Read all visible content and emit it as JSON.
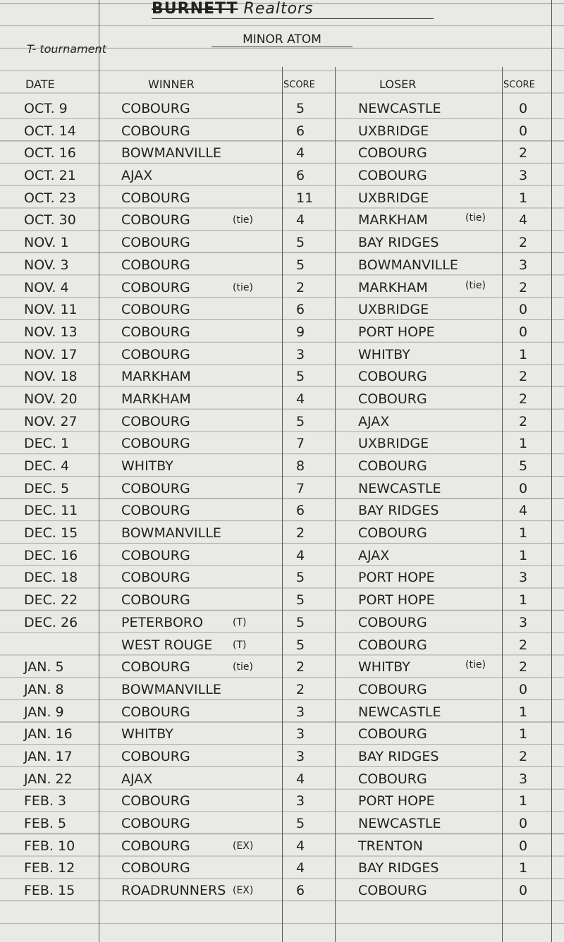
{
  "header": {
    "title_struck": "BURNETT",
    "title": "Realtors",
    "subtitle": "MINOR ATOM",
    "legend_note": "T- tournament"
  },
  "columns": {
    "date": "DATE",
    "winner": "WINNER",
    "winner_score": "SCORE",
    "loser": "LOSER",
    "loser_score": "SCORE"
  },
  "rows": [
    {
      "date": "OCT. 9",
      "winner": "COBOURG",
      "wmark": "",
      "ws": "5",
      "loser": "NEWCASTLE",
      "lmark": "",
      "ls": "0"
    },
    {
      "date": "OCT. 14",
      "winner": "COBOURG",
      "wmark": "",
      "ws": "6",
      "loser": "UXBRIDGE",
      "lmark": "",
      "ls": "0"
    },
    {
      "date": "OCT. 16",
      "winner": "BOWMANVILLE",
      "wmark": "",
      "ws": "4",
      "loser": "COBOURG",
      "lmark": "",
      "ls": "2"
    },
    {
      "date": "OCT. 21",
      "winner": "AJAX",
      "wmark": "",
      "ws": "6",
      "loser": "COBOURG",
      "lmark": "",
      "ls": "3"
    },
    {
      "date": "OCT. 23",
      "winner": "COBOURG",
      "wmark": "",
      "ws": "11",
      "loser": "UXBRIDGE",
      "lmark": "",
      "ls": "1"
    },
    {
      "date": "OCT. 30",
      "winner": "COBOURG",
      "wmark": "(tie)",
      "ws": "4",
      "loser": "MARKHAM",
      "lmark": "(tie)",
      "ls": "4"
    },
    {
      "date": "NOV. 1",
      "winner": "COBOURG",
      "wmark": "",
      "ws": "5",
      "loser": "BAY RIDGES",
      "lmark": "",
      "ls": "2"
    },
    {
      "date": "NOV. 3",
      "winner": "COBOURG",
      "wmark": "",
      "ws": "5",
      "loser": "BOWMANVILLE",
      "lmark": "",
      "ls": "3"
    },
    {
      "date": "NOV. 4",
      "winner": "COBOURG",
      "wmark": "(tie)",
      "ws": "2",
      "loser": "MARKHAM",
      "lmark": "(tie)",
      "ls": "2"
    },
    {
      "date": "NOV. 11",
      "winner": "COBOURG",
      "wmark": "",
      "ws": "6",
      "loser": "UXBRIDGE",
      "lmark": "",
      "ls": "0"
    },
    {
      "date": "NOV. 13",
      "winner": "COBOURG",
      "wmark": "",
      "ws": "9",
      "loser": "PORT HOPE",
      "lmark": "",
      "ls": "0"
    },
    {
      "date": "NOV. 17",
      "winner": "COBOURG",
      "wmark": "",
      "ws": "3",
      "loser": "WHITBY",
      "lmark": "",
      "ls": "1"
    },
    {
      "date": "NOV. 18",
      "winner": "MARKHAM",
      "wmark": "",
      "ws": "5",
      "loser": "COBOURG",
      "lmark": "",
      "ls": "2"
    },
    {
      "date": "NOV. 20",
      "winner": "MARKHAM",
      "wmark": "",
      "ws": "4",
      "loser": "COBOURG",
      "lmark": "",
      "ls": "2"
    },
    {
      "date": "NOV. 27",
      "winner": "COBOURG",
      "wmark": "",
      "ws": "5",
      "loser": "AJAX",
      "lmark": "",
      "ls": "2"
    },
    {
      "date": "DEC. 1",
      "winner": "COBOURG",
      "wmark": "",
      "ws": "7",
      "loser": "UXBRIDGE",
      "lmark": "",
      "ls": "1"
    },
    {
      "date": "DEC. 4",
      "winner": "WHITBY",
      "wmark": "",
      "ws": "8",
      "loser": "COBOURG",
      "lmark": "",
      "ls": "5"
    },
    {
      "date": "DEC. 5",
      "winner": "COBOURG",
      "wmark": "",
      "ws": "7",
      "loser": "NEWCASTLE",
      "lmark": "",
      "ls": "0"
    },
    {
      "date": "DEC. 11",
      "winner": "COBOURG",
      "wmark": "",
      "ws": "6",
      "loser": "BAY RIDGES",
      "lmark": "",
      "ls": "4"
    },
    {
      "date": "DEC. 15",
      "winner": "BOWMANVILLE",
      "wmark": "",
      "ws": "2",
      "loser": "COBOURG",
      "lmark": "",
      "ls": "1"
    },
    {
      "date": "DEC. 16",
      "winner": "COBOURG",
      "wmark": "",
      "ws": "4",
      "loser": "AJAX",
      "lmark": "",
      "ls": "1"
    },
    {
      "date": "DEC. 18",
      "winner": "COBOURG",
      "wmark": "",
      "ws": "5",
      "loser": "PORT HOPE",
      "lmark": "",
      "ls": "3"
    },
    {
      "date": "DEC. 22",
      "winner": "COBOURG",
      "wmark": "",
      "ws": "5",
      "loser": "PORT HOPE",
      "lmark": "",
      "ls": "1"
    },
    {
      "date": "DEC. 26",
      "winner": "PETERBORO",
      "wmark": "(T)",
      "ws": "5",
      "loser": "COBOURG",
      "lmark": "",
      "ls": "3"
    },
    {
      "date": "",
      "winner": "WEST ROUGE",
      "wmark": "(T)",
      "ws": "5",
      "loser": "COBOURG",
      "lmark": "",
      "ls": "2"
    },
    {
      "date": "JAN. 5",
      "winner": "COBOURG",
      "wmark": "(tie)",
      "ws": "2",
      "loser": "WHITBY",
      "lmark": "(tie)",
      "ls": "2"
    },
    {
      "date": "JAN. 8",
      "winner": "BOWMANVILLE",
      "wmark": "",
      "ws": "2",
      "loser": "COBOURG",
      "lmark": "",
      "ls": "0"
    },
    {
      "date": "JAN. 9",
      "winner": "COBOURG",
      "wmark": "",
      "ws": "3",
      "loser": "NEWCASTLE",
      "lmark": "",
      "ls": "1"
    },
    {
      "date": "JAN. 16",
      "winner": "WHITBY",
      "wmark": "",
      "ws": "3",
      "loser": "COBOURG",
      "lmark": "",
      "ls": "1"
    },
    {
      "date": "JAN. 17",
      "winner": "COBOURG",
      "wmark": "",
      "ws": "3",
      "loser": "BAY RIDGES",
      "lmark": "",
      "ls": "2"
    },
    {
      "date": "JAN. 22",
      "winner": "AJAX",
      "wmark": "",
      "ws": "4",
      "loser": "COBOURG",
      "lmark": "",
      "ls": "3"
    },
    {
      "date": "FEB. 3",
      "winner": "COBOURG",
      "wmark": "",
      "ws": "3",
      "loser": "PORT HOPE",
      "lmark": "",
      "ls": "1"
    },
    {
      "date": "FEB. 5",
      "winner": "COBOURG",
      "wmark": "",
      "ws": "5",
      "loser": "NEWCASTLE",
      "lmark": "",
      "ls": "0"
    },
    {
      "date": "FEB. 10",
      "winner": "COBOURG",
      "wmark": "(EX)",
      "ws": "4",
      "loser": "TRENTON",
      "lmark": "",
      "ls": "0"
    },
    {
      "date": "FEB. 12",
      "winner": "COBOURG",
      "wmark": "",
      "ws": "4",
      "loser": "BAY RIDGES",
      "lmark": "",
      "ls": "1"
    },
    {
      "date": "FEB. 15",
      "winner": "ROADRUNNERS",
      "wmark": "(EX)",
      "ws": "6",
      "loser": "COBOURG",
      "lmark": "",
      "ls": "0"
    }
  ]
}
